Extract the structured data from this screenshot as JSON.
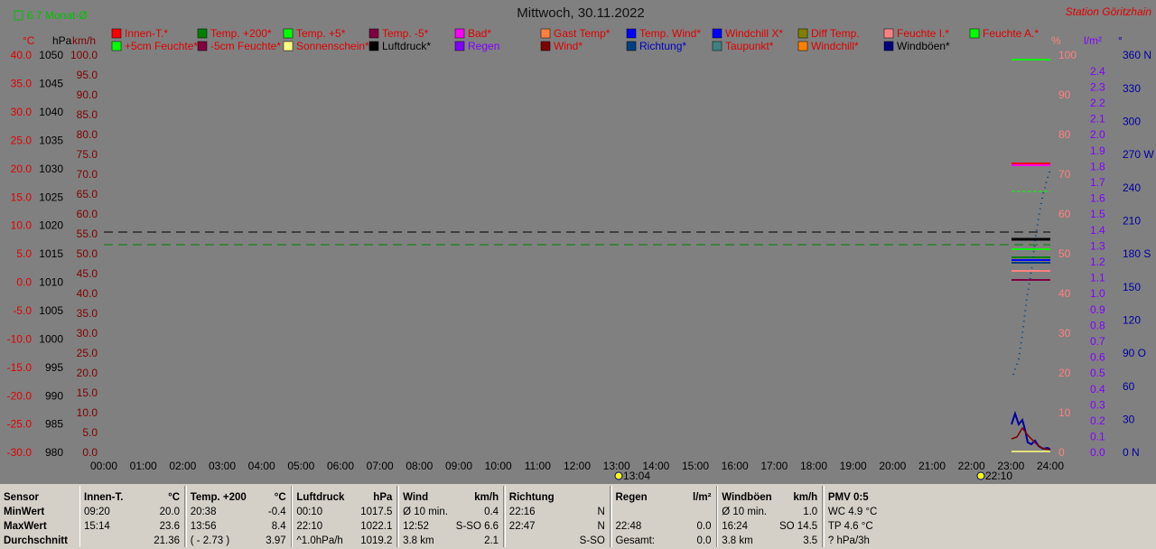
{
  "header": {
    "month_average": "6.7 Monat-Ø",
    "title": "Mittwoch, 30.11.2022",
    "station": "Station Göritzhain"
  },
  "legend": [
    [
      {
        "label": "Innen-T.*",
        "color": "#ff0000",
        "text_color": "#e00000"
      },
      {
        "label": "Temp. +200*",
        "color": "#008000",
        "text_color": "#e00000"
      },
      {
        "label": "Temp. +5*",
        "color": "#00ff00",
        "text_color": "#e00000"
      },
      {
        "label": "Temp. -5*",
        "color": "#800040",
        "text_color": "#e00000"
      },
      {
        "label": "Bad*",
        "color": "#ff00ff",
        "text_color": "#e00000"
      },
      {
        "label": "Gast Temp*",
        "color": "#ff8040",
        "text_color": "#e00000"
      },
      {
        "label": "Temp. Wind*",
        "color": "#0000ff",
        "text_color": "#e00000"
      },
      {
        "label": "Windchill X*",
        "color": "#0000ff",
        "text_color": "#e00000"
      },
      {
        "label": "Diff Temp.",
        "color": "#808000",
        "text_color": "#e00000"
      },
      {
        "label": "Feuchte I.*",
        "color": "#ff8080",
        "text_color": "#e00000"
      },
      {
        "label": "Feuchte A.*",
        "color": "#00ff00",
        "text_color": "#e00000"
      }
    ],
    [
      {
        "label": "+5cm Feuchte*",
        "color": "#00ff00",
        "text_color": "#e00000"
      },
      {
        "label": "-5cm Feuchte*",
        "color": "#800040",
        "text_color": "#e00000"
      },
      {
        "label": "Sonnenschein*",
        "color": "#ffff80",
        "text_color": "#e00000"
      },
      {
        "label": "Luftdruck*",
        "color": "#000000",
        "text_color": "#000000"
      },
      {
        "label": "Regen",
        "color": "#8000ff",
        "text_color": "#8000ff"
      },
      {
        "label": "Wind*",
        "color": "#800000",
        "text_color": "#e00000"
      },
      {
        "label": "Richtung*",
        "color": "#004080",
        "text_color": "#0000c0"
      },
      {
        "label": "Taupunkt*",
        "color": "#408080",
        "text_color": "#e00000"
      },
      {
        "label": "Windchill*",
        "color": "#ff8000",
        "text_color": "#e00000"
      },
      {
        "label": "Windböen*",
        "color": "#000080",
        "text_color": "#000000"
      }
    ]
  ],
  "axes": {
    "left": [
      {
        "unit": "°C",
        "color": "#e00000",
        "ticks": [
          "40.0",
          "35.0",
          "30.0",
          "25.0",
          "20.0",
          "15.0",
          "10.0",
          "5.0",
          "0.0",
          "-5.0",
          "-10.0",
          "-15.0",
          "-20.0",
          "-25.0",
          "-30.0"
        ]
      },
      {
        "unit": "hPa",
        "color": "#000000",
        "ticks": [
          "1050",
          "1045",
          "1040",
          "1035",
          "1030",
          "1025",
          "1020",
          "1015",
          "1010",
          "1005",
          "1000",
          "995",
          "990",
          "985",
          "980"
        ]
      },
      {
        "unit": "km/h",
        "color": "#800000",
        "ticks": [
          "100.0",
          "95.0",
          "90.0",
          "85.0",
          "80.0",
          "75.0",
          "70.0",
          "65.0",
          "60.0",
          "55.0",
          "50.0",
          "45.0",
          "40.0",
          "35.0",
          "30.0",
          "25.0",
          "20.0",
          "15.0",
          "10.0",
          "5.0",
          "0.0"
        ]
      }
    ],
    "right": [
      {
        "unit": "%",
        "color": "#ff8080",
        "ticks": [
          "100",
          "90",
          "80",
          "70",
          "60",
          "50",
          "40",
          "30",
          "20",
          "10",
          "0"
        ]
      },
      {
        "unit": "l/m²",
        "color": "#8000ff",
        "ticks": [
          "2.4",
          "2.3",
          "2.2",
          "2.1",
          "2.0",
          "1.9",
          "1.8",
          "1.7",
          "1.6",
          "1.5",
          "1.4",
          "1.3",
          "1.2",
          "1.1",
          "1.0",
          "0.9",
          "0.8",
          "0.7",
          "0.6",
          "0.5",
          "0.4",
          "0.3",
          "0.2",
          "0.1",
          "0.0"
        ]
      },
      {
        "unit": "°",
        "color": "#0000a0",
        "ticks": [
          "360 N",
          "330",
          "300",
          "270 W",
          "240",
          "210",
          "180 S",
          "150",
          "120",
          "90 O",
          "60",
          "30",
          "0 N"
        ]
      }
    ]
  },
  "time_ticks": [
    "00:00",
    "01:00",
    "02:00",
    "03:00",
    "04:00",
    "05:00",
    "06:00",
    "07:00",
    "08:00",
    "09:00",
    "10:00",
    "11:00",
    "12:00",
    "13:00",
    "14:00",
    "15:00",
    "16:00",
    "17:00",
    "18:00",
    "19:00",
    "20:00",
    "21:00",
    "22:00",
    "23:00",
    "24:00"
  ],
  "events": [
    "13:04",
    "22:10"
  ],
  "stats": {
    "row_labels": [
      "Sensor",
      "MinWert",
      "MaxWert",
      "Durchschnitt"
    ],
    "panels": [
      {
        "title": "Innen-T.",
        "unit": "°C",
        "rows": [
          {
            "left": "09:20",
            "right": "20.0"
          },
          {
            "left": "15:14",
            "right": "23.6"
          },
          {
            "right": "21.36"
          }
        ]
      },
      {
        "title": "Temp. +200",
        "unit": "°C",
        "rows": [
          {
            "left": "20:38",
            "right": "-0.4"
          },
          {
            "left": "13:56",
            "right": "8.4"
          },
          {
            "left": "( - 2.73 )",
            "right": "3.97"
          }
        ]
      },
      {
        "title": "Luftdruck",
        "unit": "hPa",
        "rows": [
          {
            "left": "00:10",
            "right": "1017.5"
          },
          {
            "left": "22:10",
            "right": "1022.1"
          },
          {
            "left": "^1.0hPa/h",
            "right": "1019.2"
          }
        ]
      },
      {
        "title": "Wind",
        "unit": "km/h",
        "rows": [
          {
            "left": "Ø 10 min.",
            "right": "0.4"
          },
          {
            "left": "12:52",
            "right": "S-SO 6.6"
          },
          {
            "left": "3.8 km",
            "right": "2.1"
          }
        ]
      },
      {
        "title": "Richtung",
        "rows": [
          {
            "left": "22:16",
            "right": "N"
          },
          {
            "left": "22:47",
            "right": "N"
          },
          {
            "right": "S-SO"
          }
        ]
      },
      {
        "title": "Regen",
        "unit": "l/m²",
        "rows": [
          {},
          {
            "left": "22:48",
            "right": "0.0"
          },
          {
            "left": "Gesamt:",
            "right": "0.0"
          }
        ]
      },
      {
        "title": "Windböen",
        "unit": "km/h",
        "rows": [
          {
            "left": "Ø 10 min.",
            "right": "1.0"
          },
          {
            "left": "16:24",
            "right": "SO 14.5"
          },
          {
            "left": "3.8 km",
            "right": "3.5"
          }
        ]
      },
      {
        "title": "PMV 0:5",
        "rows": [
          {
            "left": "WC 4.9 °C"
          },
          {
            "left": "TP 4.6 °C"
          },
          {
            "left": "? hPa/3h"
          }
        ]
      }
    ]
  }
}
